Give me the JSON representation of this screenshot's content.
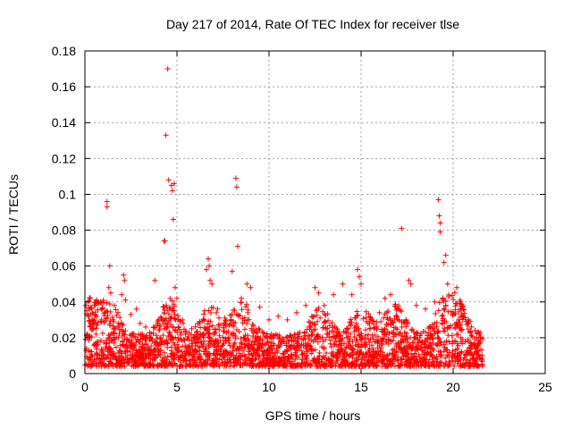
{
  "chart_data": {
    "type": "scatter",
    "title": "Day 217 of 2014, Rate Of TEC Index for receiver tlse",
    "xlabel": "GPS time / hours",
    "ylabel": "ROTI / TECUs",
    "xlim": [
      0,
      25
    ],
    "ylim": [
      0,
      0.18
    ],
    "xticks": [
      0,
      5,
      10,
      15,
      20,
      25
    ],
    "xtick_labels": [
      "0",
      "5",
      "10",
      "15",
      "20",
      "25"
    ],
    "yticks": [
      0,
      0.02,
      0.04,
      0.06,
      0.08,
      0.1,
      0.12,
      0.14,
      0.16,
      0.18
    ],
    "ytick_labels": [
      "0",
      "0.02",
      "0.04",
      "0.06",
      "0.08",
      "0.1",
      "0.12",
      "0.14",
      "0.16",
      "0.18"
    ],
    "grid": true,
    "marker": "+",
    "color": "#ff0000",
    "series": [
      {
        "name": "ROTI",
        "points": [
          [
            0.05,
            0.038
          ],
          [
            0.1,
            0.035
          ],
          [
            0.15,
            0.04
          ],
          [
            0.2,
            0.032
          ],
          [
            0.25,
            0.036
          ],
          [
            0.3,
            0.028
          ],
          [
            0.6,
            0.022
          ],
          [
            0.9,
            0.03
          ],
          [
            1.1,
            0.034
          ],
          [
            1.2,
            0.093
          ],
          [
            1.2,
            0.096
          ],
          [
            1.3,
            0.048
          ],
          [
            1.35,
            0.06
          ],
          [
            1.4,
            0.045
          ],
          [
            1.6,
            0.038
          ],
          [
            1.8,
            0.034
          ],
          [
            2.0,
            0.044
          ],
          [
            2.1,
            0.055
          ],
          [
            2.15,
            0.052
          ],
          [
            2.2,
            0.041
          ],
          [
            2.5,
            0.033
          ],
          [
            2.8,
            0.036
          ],
          [
            3.0,
            0.028
          ],
          [
            3.3,
            0.026
          ],
          [
            3.8,
            0.052
          ],
          [
            4.0,
            0.03
          ],
          [
            4.3,
            0.074
          ],
          [
            4.35,
            0.074
          ],
          [
            4.4,
            0.133
          ],
          [
            4.5,
            0.17
          ],
          [
            4.55,
            0.108
          ],
          [
            4.7,
            0.105
          ],
          [
            4.75,
            0.102
          ],
          [
            4.8,
            0.086
          ],
          [
            4.85,
            0.106
          ],
          [
            4.9,
            0.048
          ],
          [
            5.0,
            0.042
          ],
          [
            5.3,
            0.03
          ],
          [
            5.8,
            0.025
          ],
          [
            6.2,
            0.028
          ],
          [
            6.5,
            0.035
          ],
          [
            6.6,
            0.058
          ],
          [
            6.7,
            0.064
          ],
          [
            6.75,
            0.06
          ],
          [
            6.8,
            0.052
          ],
          [
            6.9,
            0.05
          ],
          [
            7.2,
            0.036
          ],
          [
            7.6,
            0.031
          ],
          [
            8.0,
            0.057
          ],
          [
            8.2,
            0.109
          ],
          [
            8.25,
            0.104
          ],
          [
            8.3,
            0.071
          ],
          [
            8.5,
            0.042
          ],
          [
            8.8,
            0.05
          ],
          [
            9.0,
            0.048
          ],
          [
            9.5,
            0.037
          ],
          [
            10.0,
            0.03
          ],
          [
            10.5,
            0.032
          ],
          [
            11.0,
            0.03
          ],
          [
            11.5,
            0.034
          ],
          [
            12.0,
            0.038
          ],
          [
            12.5,
            0.048
          ],
          [
            12.7,
            0.045
          ],
          [
            13.0,
            0.038
          ],
          [
            13.5,
            0.044
          ],
          [
            14.0,
            0.05
          ],
          [
            14.5,
            0.044
          ],
          [
            14.8,
            0.058
          ],
          [
            14.9,
            0.054
          ],
          [
            15.0,
            0.05
          ],
          [
            15.5,
            0.03
          ],
          [
            16.0,
            0.034
          ],
          [
            16.3,
            0.042
          ],
          [
            16.6,
            0.044
          ],
          [
            17.0,
            0.036
          ],
          [
            17.2,
            0.081
          ],
          [
            17.6,
            0.052
          ],
          [
            17.7,
            0.05
          ],
          [
            18.0,
            0.038
          ],
          [
            18.5,
            0.036
          ],
          [
            19.0,
            0.04
          ],
          [
            19.2,
            0.097
          ],
          [
            19.25,
            0.088
          ],
          [
            19.3,
            0.084
          ],
          [
            19.3,
            0.079
          ],
          [
            19.5,
            0.062
          ],
          [
            19.6,
            0.066
          ],
          [
            19.7,
            0.05
          ],
          [
            20.0,
            0.034
          ],
          [
            20.2,
            0.048
          ],
          [
            20.4,
            0.04
          ],
          [
            20.8,
            0.028
          ],
          [
            21.0,
            0.026
          ],
          [
            21.2,
            0.024
          ],
          [
            21.4,
            0.022
          ],
          [
            21.5,
            0.02
          ]
        ]
      }
    ]
  }
}
